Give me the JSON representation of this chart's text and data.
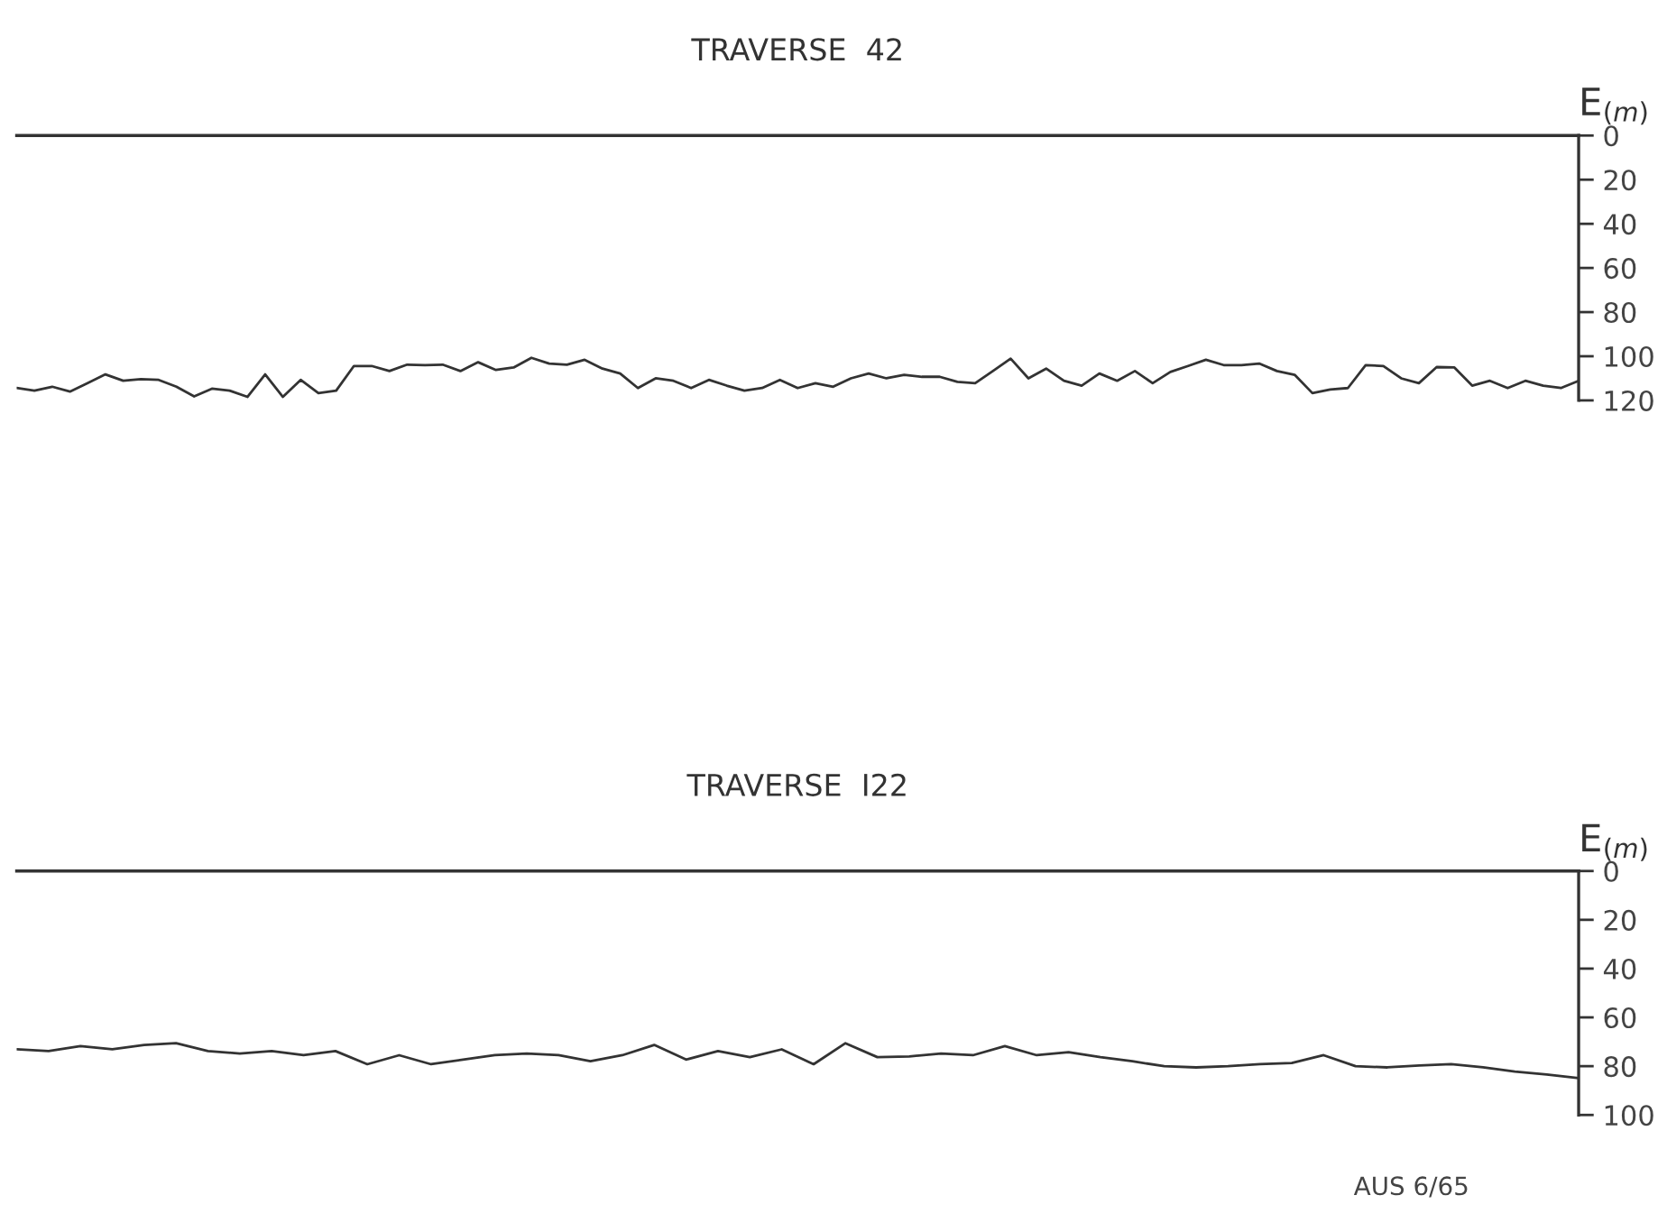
{
  "chart_data": [
    {
      "type": "line",
      "title": "TRAVERSE  42",
      "ylabel": "E$_{(m)}$",
      "ylim": [
        120,
        0
      ],
      "yticks": [
        0,
        20,
        40,
        60,
        80,
        100,
        120
      ],
      "tick_labels": "y",
      "grid": false,
      "legend": false,
      "marker": "none",
      "line_style": "solid",
      "categories": [
        null,
        null,
        null,
        null,
        null,
        null,
        null,
        null,
        null,
        null,
        null,
        null,
        null,
        null,
        null,
        null,
        null,
        null,
        null,
        null,
        null,
        null,
        null,
        null,
        null,
        null,
        null,
        null,
        null,
        null,
        null,
        null,
        null,
        null,
        null,
        null,
        null,
        null,
        null,
        null,
        null,
        null,
        null,
        null,
        null,
        null,
        null,
        null,
        null,
        null,
        null,
        null,
        null,
        null,
        null,
        null,
        null,
        null,
        null,
        null,
        null,
        null,
        null,
        null,
        null,
        null,
        null,
        null,
        null,
        null,
        null,
        null,
        null,
        null,
        null,
        null,
        null,
        null,
        null,
        null,
        null,
        null,
        null,
        null,
        null,
        null,
        null,
        null,
        null
      ],
      "series": [
        {
          "color": "#333333",
          "values": [
            114.4,
            115.6,
            113.8,
            116,
            112.2,
            108.2,
            111.1,
            110.4,
            110.7,
            113.8,
            118.2,
            114.7,
            115.6,
            118.4,
            108.2,
            118.4,
            110.7,
            116.7,
            115.6,
            104.4,
            104.4,
            106.7,
            103.8,
            104,
            103.8,
            106.7,
            102.7,
            106.2,
            105.1,
            100.7,
            103.3,
            103.8,
            101.6,
            105.6,
            107.8,
            114.4,
            110,
            111.1,
            114.4,
            110.7,
            113.3,
            115.6,
            114.4,
            110.7,
            114.4,
            112.2,
            113.8,
            110,
            107.8,
            110,
            108.4,
            109.3,
            109.3,
            111.6,
            112.2,
            106.7,
            101.1,
            110,
            105.6,
            111.1,
            113.3,
            107.8,
            111.1,
            106.7,
            112.2,
            107.1,
            104.4,
            101.6,
            104,
            104,
            103.3,
            106.7,
            108.4,
            116.7,
            115.1,
            114.4,
            104,
            104.4,
            110,
            112.2,
            104.9,
            105.1,
            113.3,
            111.1,
            114.4,
            111.1,
            113.3,
            114.4,
            111.1
          ]
        }
      ]
    },
    {
      "type": "line",
      "title": "TRAVERSE  I22",
      "ylabel": "E$_{(m)}$",
      "ylim": [
        100,
        0
      ],
      "yticks": [
        0,
        20,
        40,
        60,
        80,
        100
      ],
      "tick_labels": "y",
      "grid": false,
      "legend": false,
      "marker": "none",
      "line_style": "solid",
      "annotations": [
        "AUS 6/65"
      ],
      "categories": [
        null,
        null,
        null,
        null,
        null,
        null,
        null,
        null,
        null,
        null,
        null,
        null,
        null,
        null,
        null,
        null,
        null,
        null,
        null,
        null,
        null,
        null,
        null,
        null,
        null,
        null,
        null,
        null,
        null,
        null,
        null,
        null,
        null,
        null,
        null,
        null,
        null,
        null,
        null,
        null,
        null,
        null,
        null,
        null,
        null,
        null,
        null,
        null,
        null,
        null
      ],
      "series": [
        {
          "color": "#333333",
          "values": [
            73.1,
            73.8,
            71.8,
            73.1,
            71.3,
            70.6,
            73.8,
            74.8,
            73.8,
            75.5,
            73.8,
            79.2,
            75.5,
            79.2,
            77.3,
            75.5,
            74.8,
            75.5,
            78,
            75.5,
            71.3,
            77.3,
            73.8,
            76.3,
            73.1,
            79.2,
            70.6,
            76.3,
            76,
            74.8,
            75.5,
            71.8,
            75.5,
            74.3,
            76.3,
            78,
            80,
            80.5,
            80,
            79.2,
            78.7,
            75.5,
            80,
            80.5,
            79.7,
            79.2,
            80.5,
            82.2,
            83.4,
            84.9
          ]
        }
      ]
    }
  ]
}
